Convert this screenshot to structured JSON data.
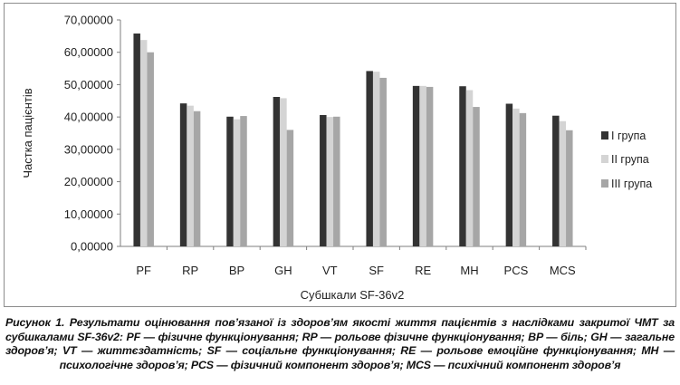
{
  "chart_data": {
    "type": "bar",
    "categories": [
      "PF",
      "RP",
      "BP",
      "GH",
      "VT",
      "SF",
      "RE",
      "MH",
      "PCS",
      "MCS"
    ],
    "series": [
      {
        "name": "I група",
        "color": "#333333",
        "values": [
          65.8,
          44.2,
          40.1,
          46.2,
          40.6,
          54.2,
          49.6,
          49.5,
          44.1,
          40.4
        ]
      },
      {
        "name": "II група",
        "color": "#d4d4d4",
        "values": [
          63.8,
          43.5,
          39.3,
          45.8,
          40.0,
          54.0,
          49.6,
          48.3,
          42.6,
          38.7
        ]
      },
      {
        "name": "III група",
        "color": "#a6a6a6",
        "values": [
          60.0,
          41.8,
          40.3,
          36.0,
          40.1,
          52.1,
          49.3,
          43.1,
          41.2,
          35.9
        ]
      }
    ],
    "ylim": [
      0,
      70
    ],
    "yticks": [
      "0,00000",
      "10,00000",
      "20,00000",
      "30,00000",
      "40,00000",
      "50,00000",
      "60,00000",
      "70,00000"
    ],
    "ylabel": "Частка пацієнтів",
    "xlabel": "Субшкали  SF-36v2",
    "legend_position": "right",
    "grid": false
  },
  "caption": "Рисунок 1. Результати оцінювання пов’язаної із здоров’ям якості життя пацієнтів з наслідками закритої ЧМТ за субшкалами SF-36v2: PF — фізичне функціонування; RP — рольове фізичне функціонування; BP — біль; GH — загальне здоров’я; VT — життєздатність; SF — соціальне функціонування; RE — рольове емоційне функціонування; MH — психологічне здоров’я; PCS — фізичний компонент здоров’я; MCS — психічний компонент здоров’я"
}
